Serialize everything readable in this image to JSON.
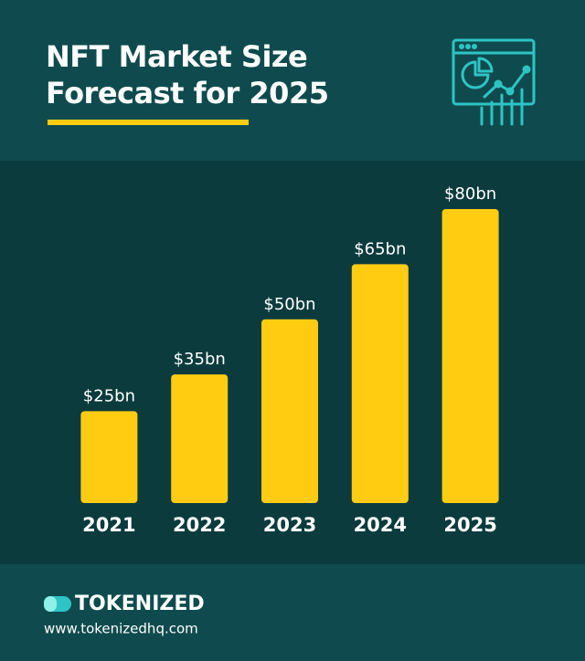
{
  "chart_data": {
    "type": "bar",
    "title": "NFT Market Size Forecast for 2025",
    "categories": [
      "2021",
      "2022",
      "2023",
      "2024",
      "2025"
    ],
    "values": [
      25,
      35,
      50,
      65,
      80
    ],
    "value_labels": [
      "$25bn",
      "$35bn",
      "$50bn",
      "$65bn",
      "$80bn"
    ],
    "color": "#ffcc12"
  },
  "footer": {
    "brand": "TOKENIZED",
    "url": "www.tokenizedhq.com"
  }
}
